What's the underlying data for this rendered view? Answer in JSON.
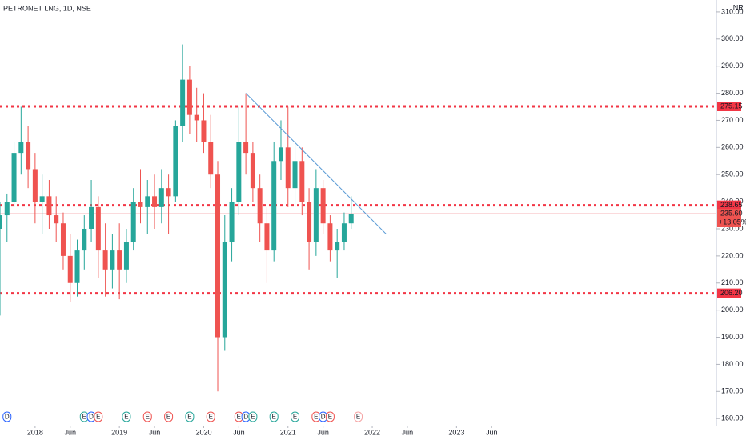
{
  "chart_data": {
    "type": "candlestick",
    "title": "PETRONET LNG, 1D, NSE",
    "currency": "INR",
    "x": [
      "2017-08",
      "2017-09",
      "2017-10",
      "2017-11",
      "2017-12",
      "2018-01",
      "2018-02",
      "2018-03",
      "2018-04",
      "2018-05",
      "2018-06",
      "2018-07",
      "2018-08",
      "2018-09",
      "2018-10",
      "2018-11",
      "2018-12",
      "2019-01",
      "2019-02",
      "2019-03",
      "2019-04",
      "2019-05",
      "2019-06",
      "2019-07",
      "2019-08",
      "2019-09",
      "2019-10",
      "2019-11",
      "2019-12",
      "2020-01",
      "2020-02",
      "2020-03",
      "2020-04",
      "2020-05",
      "2020-06",
      "2020-07",
      "2020-08",
      "2020-09",
      "2020-10",
      "2020-11",
      "2020-12",
      "2021-01",
      "2021-02",
      "2021-03",
      "2021-04",
      "2021-05",
      "2021-06",
      "2021-07",
      "2021-08",
      "2021-09",
      "2021-10"
    ],
    "open": [
      230,
      235,
      240,
      258,
      262,
      252,
      240,
      242,
      235,
      232,
      220,
      210,
      222,
      230,
      238,
      222,
      215,
      222,
      215,
      225,
      240,
      238,
      242,
      238,
      245,
      242,
      268,
      285,
      272,
      270,
      262,
      250,
      190,
      225,
      240,
      262,
      258,
      245,
      232,
      222,
      255,
      260,
      245,
      255,
      240,
      225,
      245,
      232,
      222,
      225,
      232
    ],
    "high": [
      240,
      243,
      262,
      275,
      268,
      258,
      250,
      248,
      242,
      236,
      228,
      226,
      235,
      248,
      242,
      232,
      228,
      232,
      230,
      245,
      252,
      248,
      250,
      252,
      250,
      270,
      298,
      290,
      282,
      280,
      272,
      255,
      235,
      245,
      275,
      280,
      262,
      250,
      238,
      262,
      270,
      275,
      262,
      260,
      245,
      252,
      248,
      235,
      230,
      236,
      242
    ],
    "low": [
      198,
      225,
      238,
      250,
      245,
      232,
      228,
      230,
      225,
      215,
      203,
      205,
      215,
      225,
      212,
      205,
      208,
      204,
      210,
      222,
      232,
      228,
      230,
      232,
      228,
      240,
      262,
      265,
      262,
      258,
      245,
      170,
      185,
      218,
      235,
      250,
      240,
      225,
      210,
      218,
      248,
      238,
      238,
      235,
      215,
      220,
      228,
      218,
      212,
      222,
      230
    ],
    "close": [
      235,
      240,
      258,
      262,
      252,
      240,
      242,
      235,
      232,
      220,
      210,
      222,
      230,
      238,
      222,
      215,
      222,
      215,
      225,
      240,
      238,
      242,
      238,
      245,
      242,
      268,
      285,
      272,
      270,
      262,
      250,
      190,
      225,
      240,
      262,
      258,
      245,
      232,
      222,
      255,
      260,
      245,
      255,
      240,
      225,
      245,
      232,
      222,
      225,
      232,
      235.6
    ],
    "up_color": "#26a69a",
    "down_color": "#ef5350",
    "xlim": [
      "2017-08",
      "2026-02"
    ],
    "xticks": [
      {
        "value": "2018-01",
        "label": "2018"
      },
      {
        "value": "2018-06",
        "label": "Jun"
      },
      {
        "value": "2019-01",
        "label": "2019"
      },
      {
        "value": "2019-06",
        "label": "Jun"
      },
      {
        "value": "2020-01",
        "label": "2020"
      },
      {
        "value": "2020-06",
        "label": "Jun"
      },
      {
        "value": "2021-01",
        "label": "2021"
      },
      {
        "value": "2021-06",
        "label": "Jun"
      },
      {
        "value": "2022-01",
        "label": "2022"
      },
      {
        "value": "2022-06",
        "label": "Jun"
      },
      {
        "value": "2023-01",
        "label": "2023"
      },
      {
        "value": "2023-06",
        "label": "Jun"
      }
    ],
    "ylim": [
      157.4,
      314.4
    ],
    "yticks": [
      {
        "value": 160,
        "label": "160.00"
      },
      {
        "value": 170,
        "label": "170.00"
      },
      {
        "value": 180,
        "label": "180.00"
      },
      {
        "value": 190,
        "label": "190.00"
      },
      {
        "value": 200,
        "label": "200.00"
      },
      {
        "value": 210,
        "label": "210.00"
      },
      {
        "value": 220,
        "label": "220.00"
      },
      {
        "value": 230,
        "label": "230.00"
      },
      {
        "value": 240,
        "label": "240.00"
      },
      {
        "value": 250,
        "label": "250.00"
      },
      {
        "value": 260,
        "label": "260.00"
      },
      {
        "value": 270,
        "label": "270.00"
      },
      {
        "value": 280,
        "label": "280.00"
      },
      {
        "value": 290,
        "label": "290.00"
      },
      {
        "value": 300,
        "label": "300.00"
      },
      {
        "value": 310,
        "label": "310.00"
      }
    ],
    "grid": false,
    "levels": [
      275.15,
      238.65,
      {
        "value": 206.2,
        "label": "206.20"
      }
    ],
    "level_color": "#f23645",
    "last_price": {
      "value": 235.6,
      "label": "235.60",
      "change": 13.05,
      "change_label": "+13.05%"
    },
    "trendline": {
      "x": [
        "2020-07",
        "2022-03"
      ],
      "y": [
        280,
        228
      ],
      "color": "#5b9bd5"
    },
    "events": [
      {
        "x": "2017-09",
        "label": "D",
        "color": "#2962ff"
      },
      {
        "x": "2018-08",
        "label": "E",
        "color": "#26a69a"
      },
      {
        "x": "2018-09",
        "label": "D",
        "color": "#2962ff"
      },
      {
        "x": "2018-10",
        "label": "E",
        "color": "#ef5350"
      },
      {
        "x": "2019-02",
        "label": "E",
        "color": "#26a69a"
      },
      {
        "x": "2019-05",
        "label": "E",
        "color": "#ef5350"
      },
      {
        "x": "2019-08",
        "label": "E",
        "color": "#ef5350"
      },
      {
        "x": "2019-11",
        "label": "E",
        "color": "#26a69a"
      },
      {
        "x": "2020-02",
        "label": "E",
        "color": "#ef5350"
      },
      {
        "x": "2020-06",
        "label": "E",
        "color": "#ef5350"
      },
      {
        "x": "2020-07",
        "label": "D",
        "color": "#2962ff"
      },
      {
        "x": "2020-08",
        "label": "E",
        "color": "#26a69a"
      },
      {
        "x": "2020-11",
        "label": "E",
        "color": "#26a69a"
      },
      {
        "x": "2021-02",
        "label": "E",
        "color": "#26a69a"
      },
      {
        "x": "2021-05",
        "label": "E",
        "color": "#ef5350"
      },
      {
        "x": "2021-06",
        "label": "D",
        "color": "#2962ff"
      },
      {
        "x": "2021-07",
        "label": "E",
        "color": "#ef5350"
      },
      {
        "x": "2021-11",
        "label": "E",
        "color": "#f5a5a5"
      }
    ]
  }
}
